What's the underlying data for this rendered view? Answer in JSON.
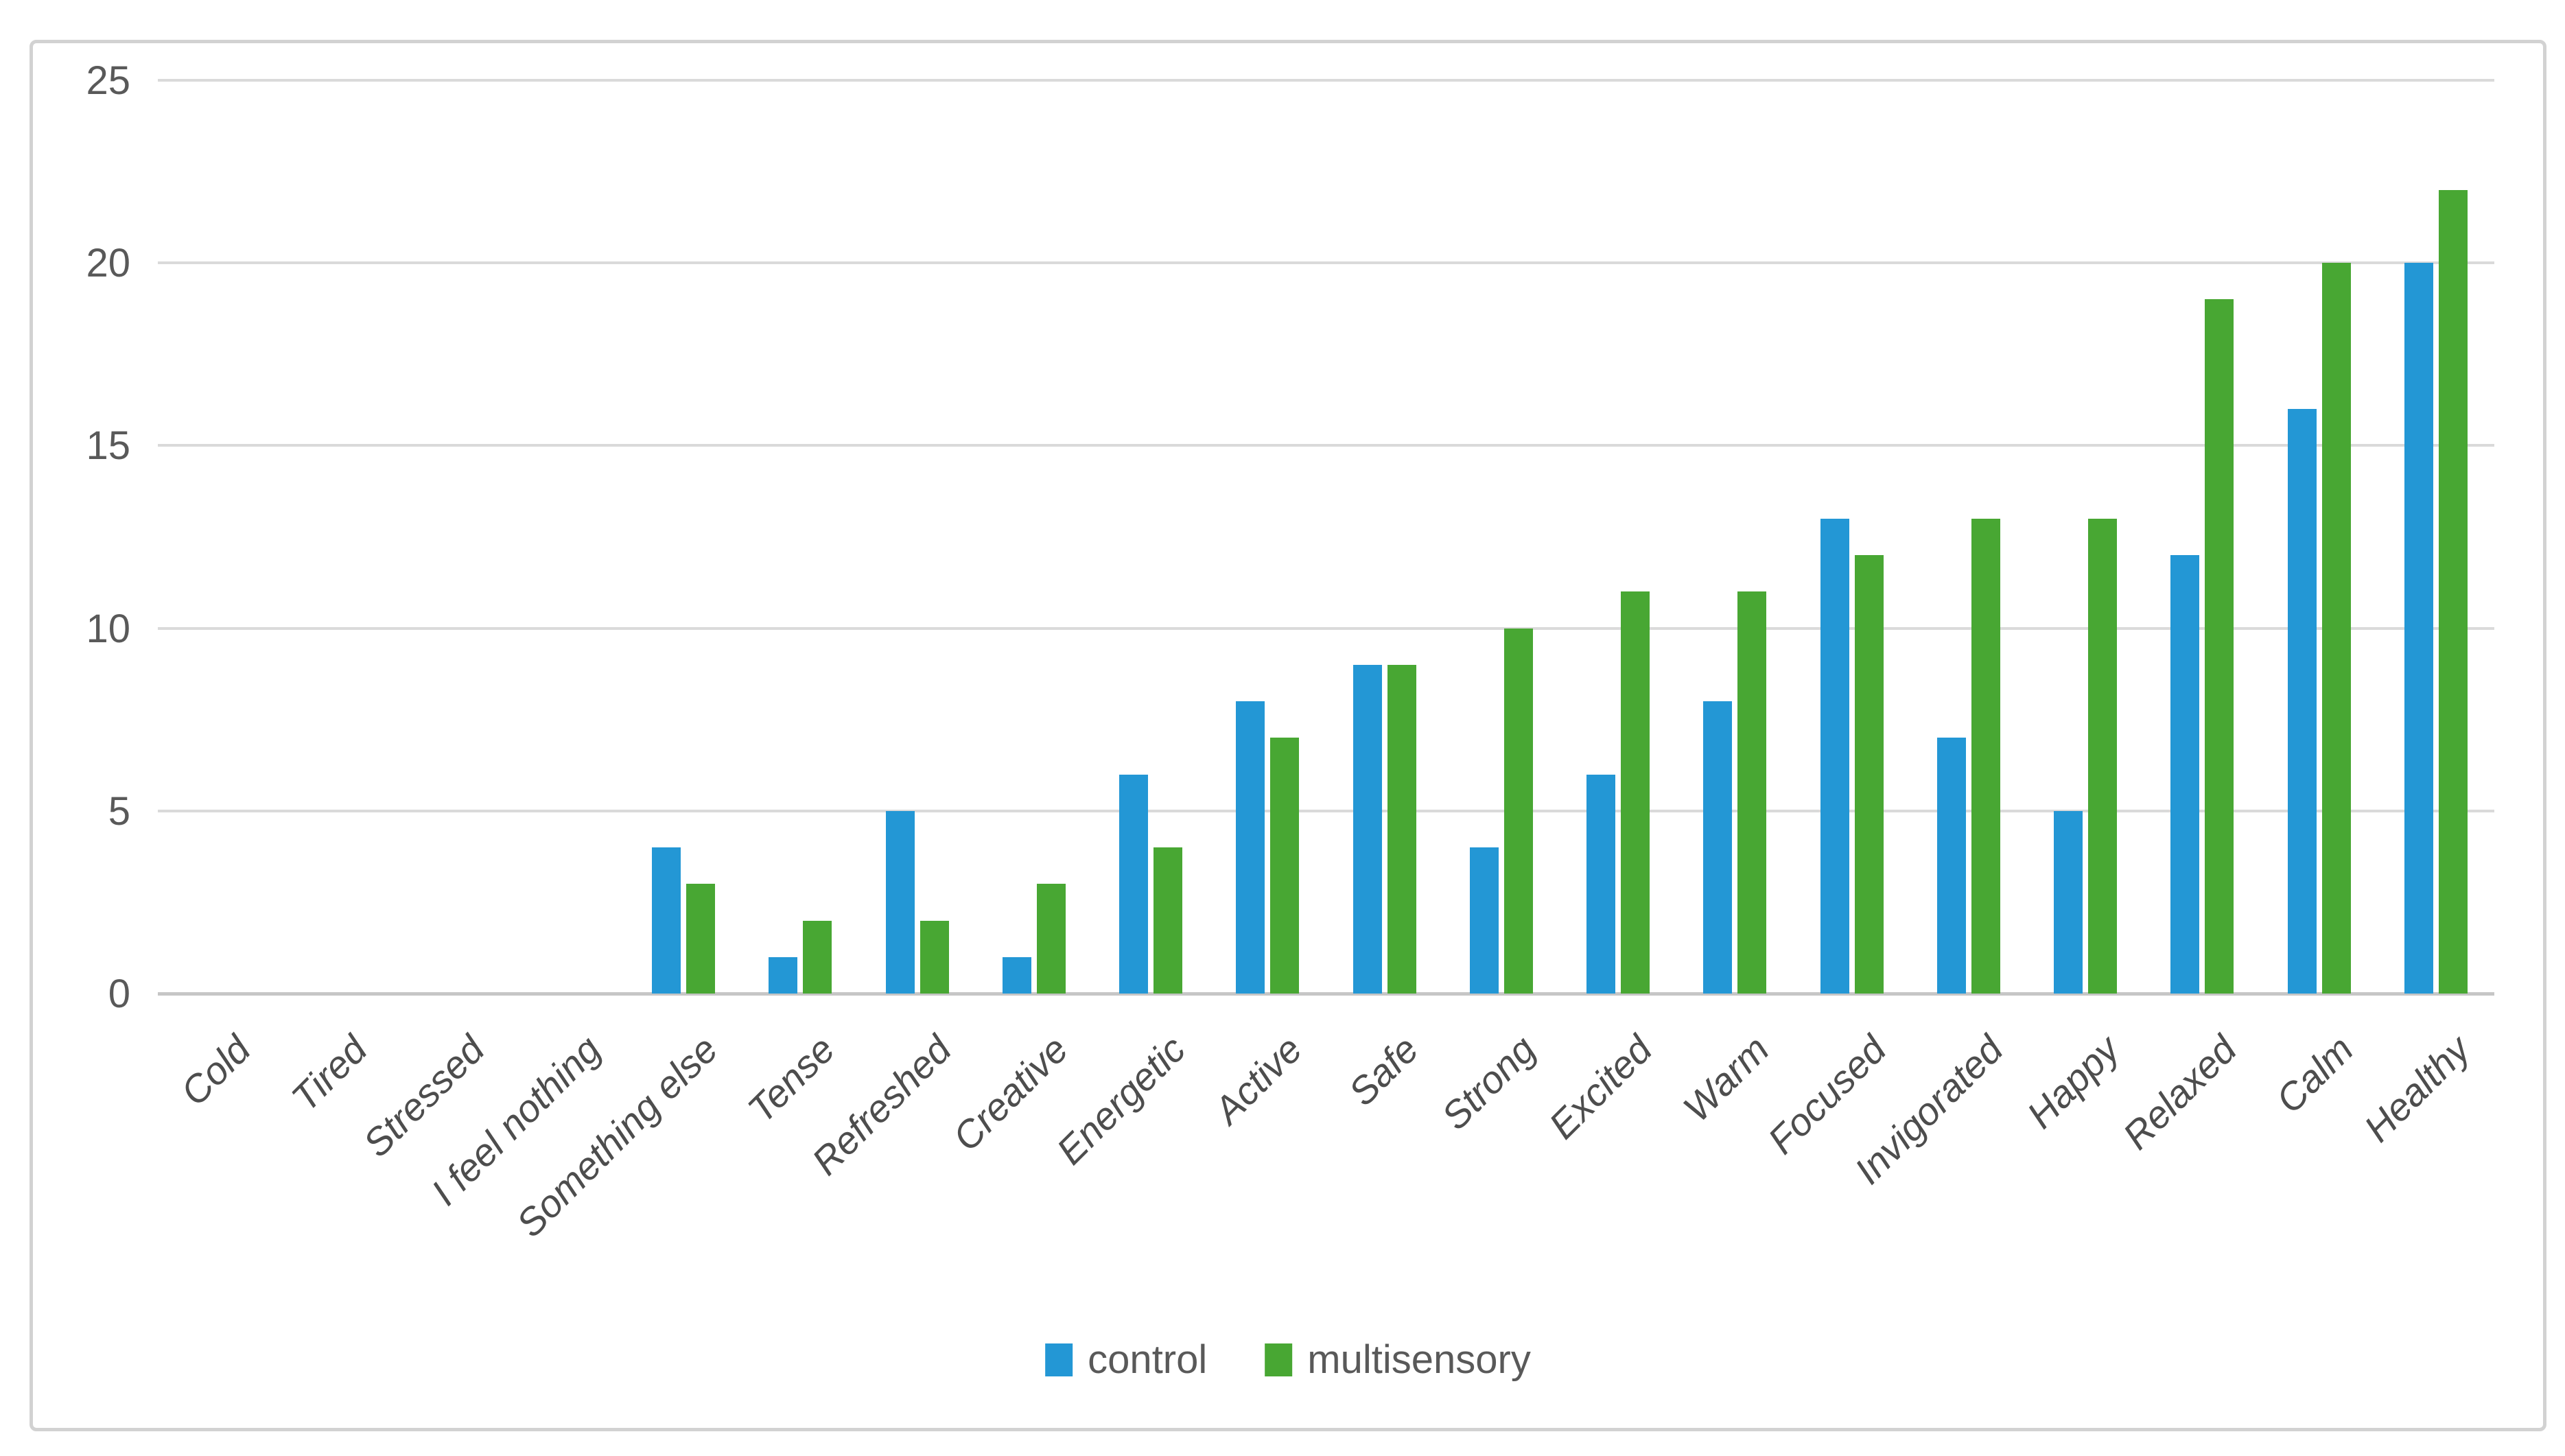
{
  "figure": {
    "background": "#ffffff",
    "border_color": "#d2d2d2"
  },
  "chart_data": {
    "type": "bar",
    "title": "",
    "xlabel": "",
    "ylabel": "",
    "categories": [
      "Cold",
      "Tired",
      "Stressed",
      "I feel nothing",
      "Something else",
      "Tense",
      "Refreshed",
      "Creative",
      "Energetic",
      "Active",
      "Safe",
      "Strong",
      "Excited",
      "Warm",
      "Focused",
      "Invigorated",
      "Happy",
      "Relaxed",
      "Calm",
      "Healthy"
    ],
    "series": [
      {
        "name": "control",
        "color": "#2397d5",
        "values": [
          0,
          0,
          0,
          0,
          4,
          1,
          5,
          1,
          6,
          8,
          9,
          4,
          6,
          8,
          13,
          7,
          5,
          12,
          16,
          20
        ]
      },
      {
        "name": "multisensory",
        "color": "#48a733",
        "values": [
          0,
          0,
          0,
          0,
          3,
          2,
          2,
          3,
          4,
          7,
          9,
          10,
          11,
          11,
          12,
          13,
          13,
          19,
          20,
          22
        ]
      }
    ],
    "ylim": [
      0,
      25
    ],
    "y_ticks": [
      0,
      5,
      10,
      15,
      20,
      25
    ],
    "grid": "horizontal",
    "gridline_color": "#dadada",
    "zero_line_color": "#c6c6c6",
    "tick_label_color": "#595959",
    "legend_position": "bottom-center"
  }
}
